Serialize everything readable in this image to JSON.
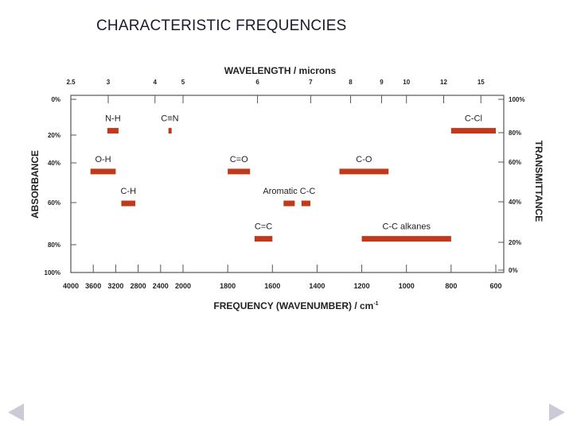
{
  "slide": {
    "title": "CHARACTERISTIC FREQUENCIES",
    "prev_icon": "triangle-left-icon",
    "next_icon": "triangle-right-icon"
  },
  "colors": {
    "bar": "#c0391b",
    "axis": "#555555",
    "text": "#222222",
    "nav": "#c9ccd6"
  },
  "chart_data": {
    "type": "bar",
    "title_top": "WAVELENGTH / microns",
    "xlabel": "FREQUENCY (WAVENUMBER) / cm",
    "xlabel_superscript": "-1",
    "ylabel_left": "ABSORBANCE",
    "ylabel_right": "TRANSMITTANCE",
    "x_ticks": [
      "4000",
      "3600",
      "3200",
      "2800",
      "2400",
      "2000",
      "1800",
      "1600",
      "1400",
      "1200",
      "1000",
      "800",
      "600"
    ],
    "top_ticks": [
      "2.5",
      "3",
      "4",
      "5",
      "6",
      "7",
      "8",
      "9",
      "10",
      "12",
      "15"
    ],
    "left_ticks": [
      "0%",
      "20%",
      "40%",
      "60%",
      "80%",
      "100%"
    ],
    "right_ticks": [
      "100%",
      "80%",
      "60%",
      "40%",
      "20%",
      "0%"
    ],
    "xlim": [
      4000,
      600
    ],
    "ylim": [
      0,
      100
    ],
    "bands": [
      {
        "label": "N-H",
        "x_start": 3350,
        "x_end": 3150,
        "absorbance": 20,
        "label_pos": "above"
      },
      {
        "label": "C≡N",
        "x_start": 2260,
        "x_end": 2210,
        "absorbance": 20,
        "label_pos": "above"
      },
      {
        "label": "C-Cl",
        "x_start": 800,
        "x_end": 600,
        "absorbance": 20,
        "label_pos": "above"
      },
      {
        "label": "O-H",
        "x_start": 3650,
        "x_end": 3200,
        "absorbance": 43,
        "label_pos": "above"
      },
      {
        "label": "C=O",
        "x_start": 1800,
        "x_end": 1700,
        "absorbance": 43,
        "label_pos": "above"
      },
      {
        "label": "C-O",
        "x_start": 1300,
        "x_end": 1080,
        "absorbance": 43,
        "label_pos": "above"
      },
      {
        "label": "C-H",
        "x_start": 3100,
        "x_end": 2850,
        "absorbance": 61,
        "label_pos": "above"
      },
      {
        "label": "Aromatic C-C",
        "x_start": 1600,
        "x_end": 1450,
        "absorbance": 61,
        "label_pos": "above",
        "segments": [
          [
            1550,
            1500
          ],
          [
            1470,
            1430
          ]
        ]
      },
      {
        "label": "C=C",
        "x_start": 1680,
        "x_end": 1600,
        "absorbance": 81,
        "label_pos": "above"
      },
      {
        "label": "C-C alkanes",
        "x_start": 1200,
        "x_end": 800,
        "absorbance": 81,
        "label_pos": "above"
      }
    ]
  }
}
